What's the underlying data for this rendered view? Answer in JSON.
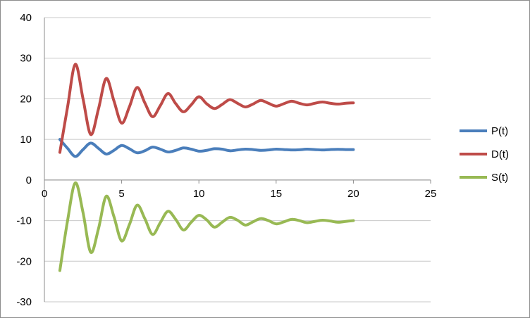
{
  "chart_data": {
    "type": "line",
    "title": "",
    "xlabel": "",
    "ylabel": "",
    "xlim": [
      0,
      25
    ],
    "ylim": [
      -30,
      40
    ],
    "x_ticks": [
      "0",
      "5",
      "10",
      "15",
      "20",
      "25"
    ],
    "y_ticks": [
      "40",
      "30",
      "20",
      "10",
      "0",
      "-10",
      "-20",
      "-30"
    ],
    "grid": "horizontal",
    "legend_position": "right",
    "x": [
      1,
      1.5,
      2,
      2.5,
      3,
      3.5,
      4,
      4.5,
      5,
      5.5,
      6,
      6.5,
      7,
      7.5,
      8,
      8.5,
      9,
      9.5,
      10,
      10.5,
      11,
      11.5,
      12,
      12.5,
      13,
      13.5,
      14,
      14.5,
      15,
      15.5,
      16,
      16.5,
      17,
      17.5,
      18,
      18.5,
      19,
      19.5,
      20
    ],
    "series": [
      {
        "name": "P(t)",
        "color": "#4a7ebb",
        "values": [
          10.0,
          7.8,
          5.8,
          7.5,
          9.1,
          7.8,
          6.4,
          7.3,
          8.5,
          7.7,
          6.7,
          7.2,
          8.1,
          7.6,
          6.9,
          7.3,
          7.9,
          7.6,
          7.1,
          7.3,
          7.7,
          7.6,
          7.2,
          7.4,
          7.6,
          7.5,
          7.3,
          7.4,
          7.6,
          7.5,
          7.4,
          7.45,
          7.6,
          7.5,
          7.4,
          7.5,
          7.55,
          7.5,
          7.5
        ]
      },
      {
        "name": "D(t)",
        "color": "#be4b48",
        "values": [
          6.8,
          18.0,
          28.5,
          20.0,
          11.2,
          17.5,
          25.0,
          19.5,
          14.0,
          18.0,
          22.8,
          19.0,
          15.6,
          18.3,
          21.3,
          18.8,
          16.8,
          18.5,
          20.5,
          18.8,
          17.6,
          18.6,
          19.8,
          18.9,
          18.0,
          18.7,
          19.6,
          18.9,
          18.2,
          18.8,
          19.4,
          18.9,
          18.5,
          18.9,
          19.2,
          18.9,
          18.7,
          18.9,
          19.0
        ]
      },
      {
        "name": "S(t)",
        "color": "#98b954",
        "values": [
          -22.3,
          -10.0,
          -0.7,
          -8.0,
          -17.8,
          -12.0,
          -4.0,
          -9.0,
          -15.0,
          -11.0,
          -6.2,
          -9.5,
          -13.4,
          -10.5,
          -7.7,
          -9.7,
          -12.3,
          -10.4,
          -8.7,
          -9.8,
          -11.6,
          -10.4,
          -9.2,
          -9.9,
          -11.1,
          -10.3,
          -9.5,
          -10.0,
          -10.8,
          -10.3,
          -9.7,
          -10.0,
          -10.5,
          -10.2,
          -9.9,
          -10.1,
          -10.4,
          -10.2,
          -10.0
        ]
      }
    ]
  }
}
